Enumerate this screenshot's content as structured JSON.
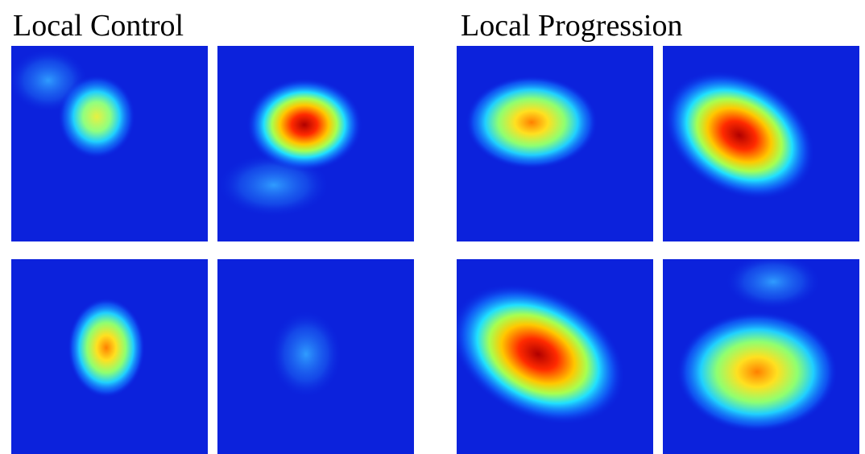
{
  "groups": [
    {
      "title": "Local Control"
    },
    {
      "title": "Local Progression"
    }
  ]
}
